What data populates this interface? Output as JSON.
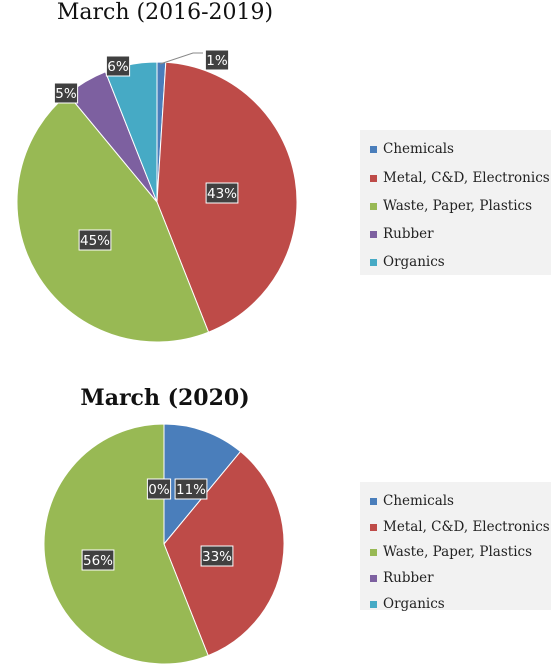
{
  "chart_data": [
    {
      "type": "pie",
      "title": "March (2016-2019)",
      "categories": [
        "Chemicals",
        "Metal, C&D, Electronics",
        "Waste, Paper, Plastics",
        "Rubber",
        "Organics"
      ],
      "values": [
        1,
        43,
        45,
        5,
        6
      ],
      "value_labels": [
        "1%",
        "43%",
        "45%",
        "5%",
        "6%"
      ],
      "colors": [
        "#4a7ebb",
        "#be4b48",
        "#98b954",
        "#7d60a0",
        "#46aac5"
      ],
      "legend": "right"
    },
    {
      "type": "pie",
      "title": "March (2020)",
      "categories": [
        "Chemicals",
        "Metal, C&D, Electronics",
        "Waste, Paper, Plastics",
        "Rubber",
        "Organics"
      ],
      "values": [
        11,
        33,
        56,
        0,
        0
      ],
      "value_labels": [
        "11%",
        "33%",
        "56%",
        "0%",
        "0%"
      ],
      "colors": [
        "#4a7ebb",
        "#be4b48",
        "#98b954",
        "#7d60a0",
        "#46aac5"
      ],
      "legend": "right"
    }
  ]
}
